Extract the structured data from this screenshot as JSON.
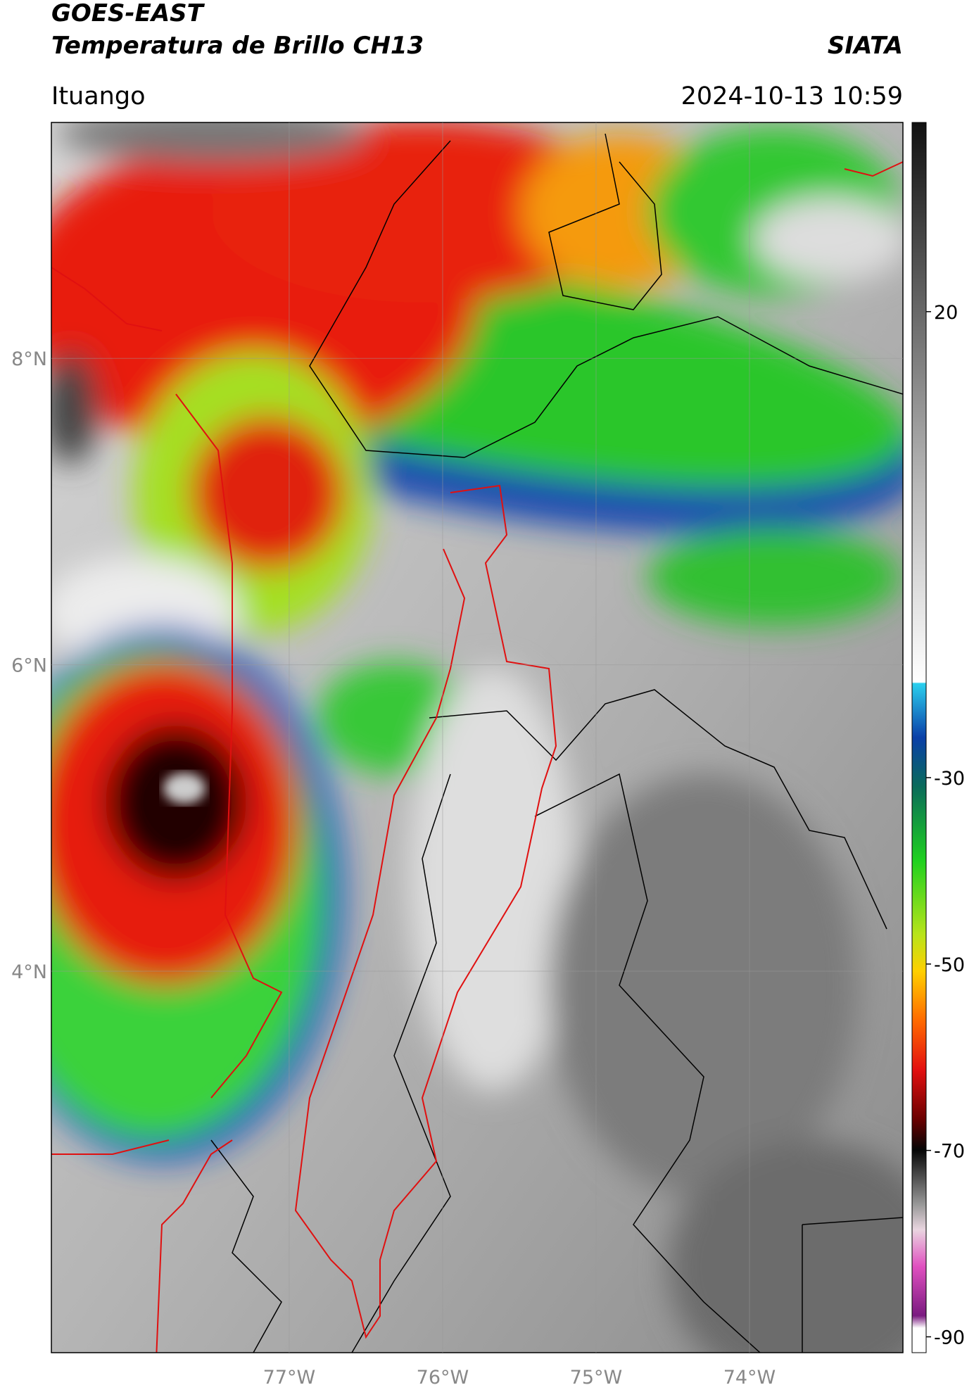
{
  "header": {
    "title_line1": "GOES-EAST",
    "title_line2": "Temperatura de Brillo CH13",
    "org": "SIATA",
    "region": "Ituango",
    "datetime": "2024-10-13 10:59"
  },
  "map": {
    "lon_range": [
      -78.55,
      -73.0
    ],
    "lat_range": [
      1.51,
      9.54
    ],
    "lon_ticks": [
      {
        "value": -77,
        "label": "77°W"
      },
      {
        "value": -76,
        "label": "76°W"
      },
      {
        "value": -75,
        "label": "75°W"
      },
      {
        "value": -74,
        "label": "74°W"
      }
    ],
    "lat_ticks": [
      {
        "value": 8,
        "label": "8°N"
      },
      {
        "value": 6,
        "label": "6°N"
      },
      {
        "value": 4,
        "label": "4°N"
      }
    ],
    "grid": true
  },
  "colorbar": {
    "lim": [
      -91.7,
      40.3
    ],
    "ticks": [
      20,
      -30,
      -50,
      -70,
      -90
    ]
  }
}
